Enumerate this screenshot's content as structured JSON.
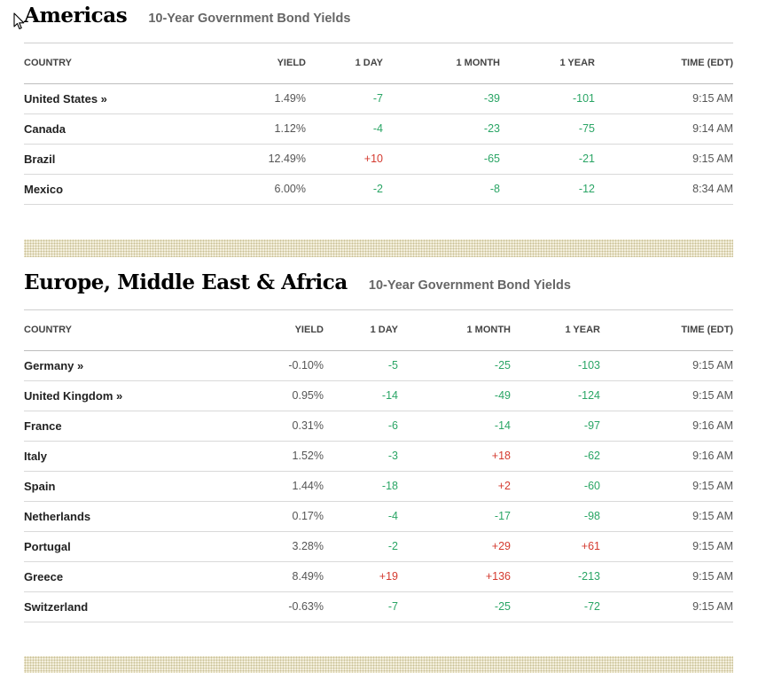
{
  "sections": [
    {
      "title": "Americas",
      "subtitle": "10-Year Government Bond Yields",
      "columns": [
        "COUNTRY",
        "YIELD",
        "1 DAY",
        "1 MONTH",
        "1 YEAR",
        "TIME (EDT)"
      ],
      "rows": [
        {
          "country": "United States »",
          "yield": "1.49%",
          "day": "-7",
          "month": "-39",
          "year": "-101",
          "time": "9:15 AM"
        },
        {
          "country": "Canada",
          "yield": "1.12%",
          "day": "-4",
          "month": "-23",
          "year": "-75",
          "time": "9:14 AM"
        },
        {
          "country": "Brazil",
          "yield": "12.49%",
          "day": "+10",
          "month": "-65",
          "year": "-21",
          "time": "9:15 AM"
        },
        {
          "country": "Mexico",
          "yield": "6.00%",
          "day": "-2",
          "month": "-8",
          "year": "-12",
          "time": "8:34 AM"
        }
      ]
    },
    {
      "title": "Europe, Middle East & Africa",
      "subtitle": "10-Year Government Bond Yields",
      "columns": [
        "COUNTRY",
        "YIELD",
        "1 DAY",
        "1 MONTH",
        "1 YEAR",
        "TIME (EDT)"
      ],
      "rows": [
        {
          "country": "Germany »",
          "yield": "-0.10%",
          "day": "-5",
          "month": "-25",
          "year": "-103",
          "time": "9:15 AM"
        },
        {
          "country": "United Kingdom »",
          "yield": "0.95%",
          "day": "-14",
          "month": "-49",
          "year": "-124",
          "time": "9:15 AM"
        },
        {
          "country": "France",
          "yield": "0.31%",
          "day": "-6",
          "month": "-14",
          "year": "-97",
          "time": "9:16 AM"
        },
        {
          "country": "Italy",
          "yield": "1.52%",
          "day": "-3",
          "month": "+18",
          "year": "-62",
          "time": "9:16 AM"
        },
        {
          "country": "Spain",
          "yield": "1.44%",
          "day": "-18",
          "month": "+2",
          "year": "-60",
          "time": "9:15 AM"
        },
        {
          "country": "Netherlands",
          "yield": "0.17%",
          "day": "-4",
          "month": "-17",
          "year": "-98",
          "time": "9:15 AM"
        },
        {
          "country": "Portugal",
          "yield": "3.28%",
          "day": "-2",
          "month": "+29",
          "year": "+61",
          "time": "9:15 AM"
        },
        {
          "country": "Greece",
          "yield": "8.49%",
          "day": "+19",
          "month": "+136",
          "year": "-213",
          "time": "9:15 AM"
        },
        {
          "country": "Switzerland",
          "yield": "-0.63%",
          "day": "-7",
          "month": "-25",
          "year": "-72",
          "time": "9:15 AM"
        }
      ]
    }
  ],
  "colors": {
    "positive": "#d43a2f",
    "negative": "#2aa565",
    "divider_pattern": "#c8bf93"
  },
  "cursor_icon": "arrow-pointer-icon"
}
